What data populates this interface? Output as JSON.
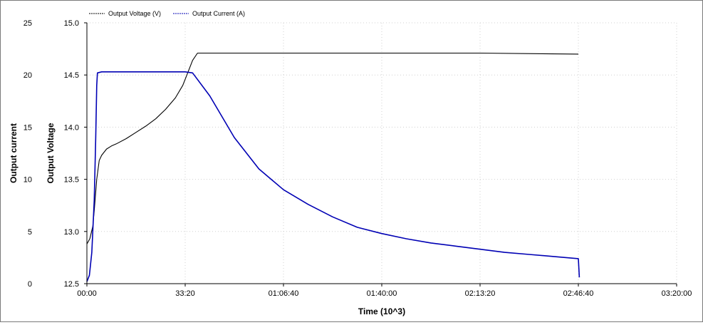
{
  "chart_data": {
    "type": "line",
    "xlabel": "Time (10^3)",
    "ylabel_left_outer": "Output current",
    "ylabel_left_inner": "Output Voltage",
    "x_ticks": [
      "00:00",
      "33:20",
      "01:06:40",
      "01:40:00",
      "02:13:20",
      "02:46:40",
      "03:20:00"
    ],
    "x_tick_values_seconds": [
      0,
      2000,
      4000,
      6000,
      8000,
      10000,
      12000
    ],
    "xlim_seconds": [
      0,
      12000
    ],
    "y_current_ticks": [
      "0",
      "5",
      "10",
      "15",
      "20",
      "25"
    ],
    "y_current_range": [
      0,
      25
    ],
    "y_voltage_ticks": [
      "12.5",
      "13.0",
      "13.5",
      "14.0",
      "14.5",
      "15.0"
    ],
    "y_voltage_range": [
      12.5,
      15.0
    ],
    "grid": true,
    "legend_position": "top-left",
    "series": [
      {
        "name": "Output Voltage (V)",
        "axis": "voltage",
        "color": "#000000",
        "x": [
          0,
          60,
          120,
          150,
          200,
          250,
          300,
          400,
          500,
          600,
          800,
          1000,
          1200,
          1400,
          1600,
          1800,
          1950,
          2050,
          2150,
          2250,
          5000,
          8000,
          10000
        ],
        "y": [
          12.88,
          12.93,
          13.05,
          13.2,
          13.5,
          13.68,
          13.73,
          13.79,
          13.82,
          13.84,
          13.89,
          13.95,
          14.01,
          14.08,
          14.17,
          14.28,
          14.4,
          14.52,
          14.64,
          14.71,
          14.71,
          14.71,
          14.7
        ]
      },
      {
        "name": "Output Current (A)",
        "axis": "current",
        "color": "#0000b4",
        "x": [
          0,
          50,
          100,
          150,
          180,
          200,
          215,
          300,
          1000,
          2000,
          2150,
          2500,
          3000,
          3500,
          4000,
          4500,
          5000,
          5500,
          6000,
          6500,
          7000,
          7500,
          8000,
          8500,
          9000,
          9500,
          10000,
          10010,
          10020
        ],
        "y": [
          0.2,
          0.8,
          3.0,
          8.0,
          14.0,
          19.0,
          20.2,
          20.3,
          20.3,
          20.3,
          20.2,
          18.0,
          14.0,
          11.0,
          9.0,
          7.6,
          6.4,
          5.4,
          4.8,
          4.3,
          3.9,
          3.6,
          3.3,
          3.0,
          2.8,
          2.6,
          2.4,
          1.5,
          0.6
        ]
      }
    ]
  }
}
